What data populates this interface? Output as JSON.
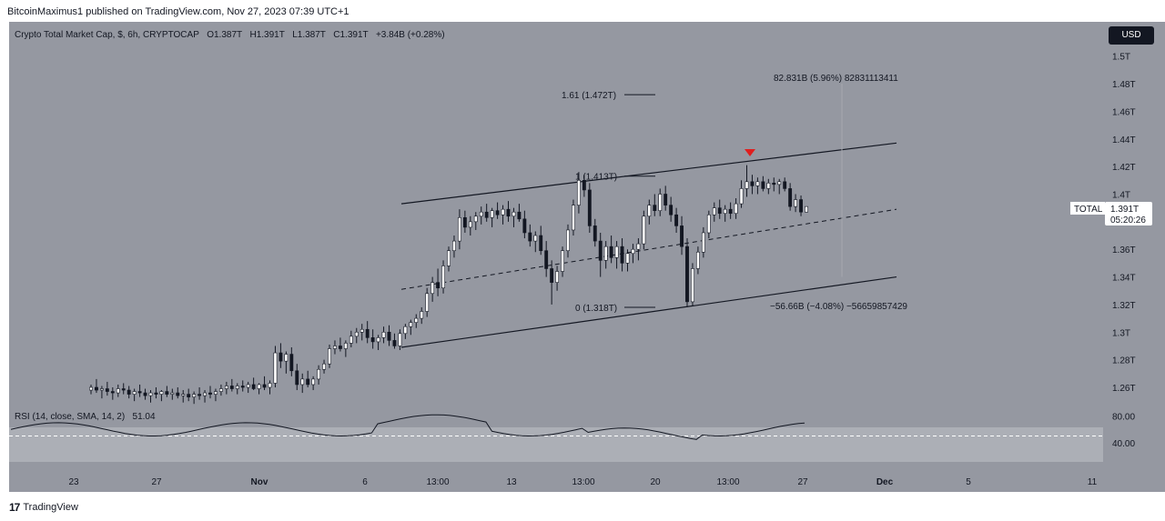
{
  "header": {
    "published": "BitcoinMaximus1 published on TradingView.com, Nov 27, 2023 07:39 UTC+1"
  },
  "legend": {
    "title": "Crypto Total Market Cap, $, 6h, CRYPTOCAP",
    "o_label": "O",
    "o": "1.387T",
    "h_label": "H",
    "h": "1.391T",
    "l_label": "L",
    "l": "1.387T",
    "c_label": "C",
    "c": "1.391T",
    "change": "+3.84B (+0.28%)"
  },
  "rsi_legend": {
    "label": "RSI (14, close, SMA, 14, 2)",
    "value": "51.04"
  },
  "currency_button": "USD",
  "brand": {
    "name": "TradingView",
    "mark": "17"
  },
  "chart_data": {
    "type": "candlestick",
    "symbol": "TOTAL",
    "timeframe": "6h",
    "price_axis_ticks": [
      "1.5T",
      "1.48T",
      "1.46T",
      "1.44T",
      "1.42T",
      "1.4T",
      "1.36T",
      "1.34T",
      "1.32T",
      "1.3T",
      "1.28T",
      "1.26T"
    ],
    "rsi_axis_ticks": [
      "80.00",
      "40.00"
    ],
    "time_axis_ticks": [
      "23",
      "27",
      "Nov",
      "6",
      "13:00",
      "13",
      "13:00",
      "20",
      "13:00",
      "27",
      "Dec",
      "5",
      "11"
    ],
    "last_price": {
      "label": "TOTAL",
      "value": "1.391T",
      "countdown": "05:20:26"
    },
    "annotations": {
      "fib_161": "1.61 (1.472T)",
      "fib_1": "1 (1.413T)",
      "fib_0": "0 (1.318T)",
      "measure_up": "82.831B (5.96%) 82831113411",
      "measure_down": "−56.66B (−4.08%) −56659857429"
    },
    "colors": {
      "up": "#ffffff",
      "down": "#131722",
      "marker": "#e01e1e"
    },
    "candles": [
      [
        1.258,
        1.262,
        1.255,
        1.26
      ],
      [
        1.26,
        1.266,
        1.256,
        1.258
      ],
      [
        1.258,
        1.261,
        1.252,
        1.259
      ],
      [
        1.259,
        1.264,
        1.254,
        1.257
      ],
      [
        1.257,
        1.26,
        1.251,
        1.256
      ],
      [
        1.256,
        1.262,
        1.253,
        1.259
      ],
      [
        1.259,
        1.263,
        1.255,
        1.258
      ],
      [
        1.258,
        1.261,
        1.252,
        1.255
      ],
      [
        1.255,
        1.259,
        1.25,
        1.257
      ],
      [
        1.257,
        1.262,
        1.253,
        1.256
      ],
      [
        1.256,
        1.259,
        1.251,
        1.254
      ],
      [
        1.254,
        1.258,
        1.249,
        1.256
      ],
      [
        1.256,
        1.26,
        1.252,
        1.255
      ],
      [
        1.255,
        1.258,
        1.25,
        1.257
      ],
      [
        1.257,
        1.261,
        1.253,
        1.255
      ],
      [
        1.255,
        1.259,
        1.251,
        1.256
      ],
      [
        1.256,
        1.26,
        1.252,
        1.254
      ],
      [
        1.254,
        1.258,
        1.249,
        1.255
      ],
      [
        1.255,
        1.259,
        1.25,
        1.253
      ],
      [
        1.253,
        1.257,
        1.248,
        1.255
      ],
      [
        1.255,
        1.26,
        1.251,
        1.254
      ],
      [
        1.254,
        1.258,
        1.249,
        1.256
      ],
      [
        1.256,
        1.261,
        1.252,
        1.255
      ],
      [
        1.255,
        1.259,
        1.25,
        1.257
      ],
      [
        1.257,
        1.262,
        1.254,
        1.259
      ],
      [
        1.259,
        1.264,
        1.255,
        1.261
      ],
      [
        1.261,
        1.266,
        1.257,
        1.259
      ],
      [
        1.259,
        1.263,
        1.255,
        1.261
      ],
      [
        1.261,
        1.265,
        1.257,
        1.26
      ],
      [
        1.26,
        1.264,
        1.256,
        1.262
      ],
      [
        1.262,
        1.267,
        1.258,
        1.259
      ],
      [
        1.259,
        1.263,
        1.255,
        1.262
      ],
      [
        1.262,
        1.268,
        1.258,
        1.26
      ],
      [
        1.26,
        1.265,
        1.255,
        1.263
      ],
      [
        1.263,
        1.29,
        1.26,
        1.285
      ],
      [
        1.285,
        1.292,
        1.274,
        1.279
      ],
      [
        1.279,
        1.286,
        1.27,
        1.284
      ],
      [
        1.284,
        1.289,
        1.268,
        1.272
      ],
      [
        1.272,
        1.277,
        1.258,
        1.262
      ],
      [
        1.262,
        1.27,
        1.256,
        1.266
      ],
      [
        1.266,
        1.272,
        1.26,
        1.262
      ],
      [
        1.262,
        1.268,
        1.258,
        1.266
      ],
      [
        1.266,
        1.276,
        1.262,
        1.273
      ],
      [
        1.273,
        1.28,
        1.27,
        1.277
      ],
      [
        1.277,
        1.291,
        1.274,
        1.288
      ],
      [
        1.288,
        1.294,
        1.284,
        1.29
      ],
      [
        1.29,
        1.296,
        1.286,
        1.288
      ],
      [
        1.288,
        1.294,
        1.282,
        1.292
      ],
      [
        1.292,
        1.301,
        1.289,
        1.297
      ],
      [
        1.297,
        1.303,
        1.292,
        1.3
      ],
      [
        1.3,
        1.306,
        1.294,
        1.302
      ],
      [
        1.302,
        1.308,
        1.292,
        1.296
      ],
      [
        1.296,
        1.302,
        1.288,
        1.293
      ],
      [
        1.293,
        1.298,
        1.287,
        1.296
      ],
      [
        1.296,
        1.304,
        1.292,
        1.3
      ],
      [
        1.3,
        1.305,
        1.29,
        1.294
      ],
      [
        1.294,
        1.299,
        1.288,
        1.29
      ],
      [
        1.29,
        1.302,
        1.287,
        1.299
      ],
      [
        1.299,
        1.306,
        1.295,
        1.304
      ],
      [
        1.304,
        1.309,
        1.298,
        1.307
      ],
      [
        1.307,
        1.313,
        1.303,
        1.31
      ],
      [
        1.31,
        1.318,
        1.306,
        1.315
      ],
      [
        1.315,
        1.332,
        1.311,
        1.328
      ],
      [
        1.328,
        1.34,
        1.322,
        1.336
      ],
      [
        1.336,
        1.346,
        1.326,
        1.332
      ],
      [
        1.332,
        1.352,
        1.328,
        1.348
      ],
      [
        1.348,
        1.362,
        1.344,
        1.359
      ],
      [
        1.359,
        1.37,
        1.354,
        1.366
      ],
      [
        1.366,
        1.389,
        1.36,
        1.383
      ],
      [
        1.383,
        1.388,
        1.372,
        1.376
      ],
      [
        1.376,
        1.384,
        1.37,
        1.38
      ],
      [
        1.38,
        1.387,
        1.374,
        1.384
      ],
      [
        1.384,
        1.391,
        1.378,
        1.387
      ],
      [
        1.387,
        1.393,
        1.38,
        1.383
      ],
      [
        1.383,
        1.39,
        1.376,
        1.388
      ],
      [
        1.388,
        1.394,
        1.382,
        1.385
      ],
      [
        1.385,
        1.392,
        1.378,
        1.389
      ],
      [
        1.389,
        1.395,
        1.38,
        1.384
      ],
      [
        1.384,
        1.39,
        1.376,
        1.387
      ],
      [
        1.387,
        1.393,
        1.38,
        1.382
      ],
      [
        1.382,
        1.388,
        1.368,
        1.372
      ],
      [
        1.372,
        1.378,
        1.362,
        1.366
      ],
      [
        1.366,
        1.373,
        1.358,
        1.37
      ],
      [
        1.37,
        1.377,
        1.356,
        1.359
      ],
      [
        1.359,
        1.366,
        1.34,
        1.346
      ],
      [
        1.346,
        1.352,
        1.32,
        1.336
      ],
      [
        1.336,
        1.348,
        1.33,
        1.344
      ],
      [
        1.344,
        1.362,
        1.34,
        1.359
      ],
      [
        1.359,
        1.378,
        1.354,
        1.374
      ],
      [
        1.374,
        1.396,
        1.37,
        1.392
      ],
      [
        1.392,
        1.416,
        1.386,
        1.41
      ],
      [
        1.41,
        1.414,
        1.398,
        1.403
      ],
      [
        1.403,
        1.408,
        1.372,
        1.377
      ],
      [
        1.377,
        1.382,
        1.362,
        1.366
      ],
      [
        1.366,
        1.372,
        1.34,
        1.352
      ],
      [
        1.352,
        1.366,
        1.346,
        1.362
      ],
      [
        1.362,
        1.37,
        1.35,
        1.354
      ],
      [
        1.354,
        1.366,
        1.346,
        1.362
      ],
      [
        1.362,
        1.368,
        1.344,
        1.35
      ],
      [
        1.35,
        1.36,
        1.344,
        1.357
      ],
      [
        1.357,
        1.364,
        1.35,
        1.36
      ],
      [
        1.36,
        1.368,
        1.352,
        1.364
      ],
      [
        1.364,
        1.388,
        1.36,
        1.384
      ],
      [
        1.384,
        1.396,
        1.378,
        1.392
      ],
      [
        1.392,
        1.4,
        1.384,
        1.388
      ],
      [
        1.388,
        1.404,
        1.384,
        1.4
      ],
      [
        1.4,
        1.406,
        1.388,
        1.392
      ],
      [
        1.392,
        1.398,
        1.38,
        1.385
      ],
      [
        1.385,
        1.39,
        1.372,
        1.377
      ],
      [
        1.377,
        1.384,
        1.356,
        1.362
      ],
      [
        1.362,
        1.368,
        1.318,
        1.322
      ],
      [
        1.322,
        1.35,
        1.319,
        1.346
      ],
      [
        1.346,
        1.362,
        1.342,
        1.358
      ],
      [
        1.358,
        1.376,
        1.354,
        1.372
      ],
      [
        1.372,
        1.388,
        1.368,
        1.385
      ],
      [
        1.385,
        1.394,
        1.38,
        1.39
      ],
      [
        1.39,
        1.396,
        1.382,
        1.386
      ],
      [
        1.386,
        1.392,
        1.38,
        1.389
      ],
      [
        1.389,
        1.394,
        1.382,
        1.386
      ],
      [
        1.386,
        1.397,
        1.382,
        1.393
      ],
      [
        1.393,
        1.41,
        1.39,
        1.404
      ],
      [
        1.404,
        1.421,
        1.398,
        1.409
      ],
      [
        1.409,
        1.414,
        1.4,
        1.406
      ],
      [
        1.406,
        1.412,
        1.4,
        1.409
      ],
      [
        1.409,
        1.413,
        1.402,
        1.404
      ],
      [
        1.404,
        1.411,
        1.4,
        1.408
      ],
      [
        1.408,
        1.412,
        1.402,
        1.407
      ],
      [
        1.407,
        1.411,
        1.4,
        1.409
      ],
      [
        1.409,
        1.412,
        1.402,
        1.404
      ],
      [
        1.404,
        1.408,
        1.388,
        1.391
      ],
      [
        1.391,
        1.4,
        1.387,
        1.396
      ],
      [
        1.396,
        1.399,
        1.384,
        1.387
      ],
      [
        1.387,
        1.391,
        1.387,
        1.391
      ]
    ]
  }
}
